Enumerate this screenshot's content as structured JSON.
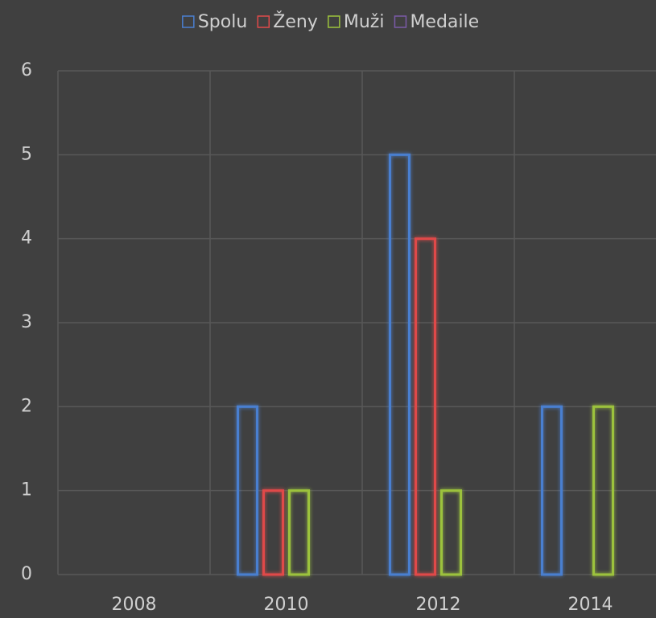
{
  "chart_data": {
    "type": "bar",
    "categories": [
      "2008",
      "2010",
      "2012",
      "2014"
    ],
    "series": [
      {
        "name": "Spolu",
        "color": "#4a7fd0",
        "values": [
          null,
          2,
          5,
          2
        ]
      },
      {
        "name": "Ženy",
        "color": "#e04a4a",
        "values": [
          null,
          1,
          4,
          null
        ]
      },
      {
        "name": "Muži",
        "color": "#9cc23c",
        "values": [
          null,
          1,
          1,
          2
        ]
      },
      {
        "name": "Medaile",
        "color": "#7a5aa8",
        "values": [
          null,
          null,
          null,
          null
        ]
      }
    ],
    "ylim": [
      0,
      6
    ],
    "yticks": [
      0,
      1,
      2,
      3,
      4,
      5,
      6
    ],
    "grid": true,
    "legend": "top"
  }
}
